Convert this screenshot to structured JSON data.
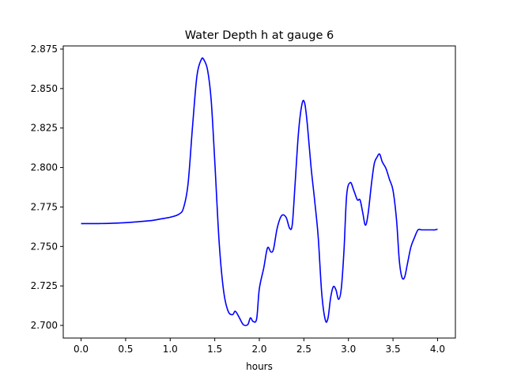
{
  "chart_data": {
    "type": "line",
    "title": "Water Depth h at gauge 6",
    "xlabel": "hours",
    "ylabel": "",
    "xlim": [
      -0.2,
      4.2
    ],
    "ylim": [
      2.692,
      2.877
    ],
    "xticks": [
      0.0,
      0.5,
      1.0,
      1.5,
      2.0,
      2.5,
      3.0,
      3.5,
      4.0
    ],
    "xtick_labels": [
      "0.0",
      "0.5",
      "1.0",
      "1.5",
      "2.0",
      "2.5",
      "3.0",
      "3.5",
      "4.0"
    ],
    "yticks": [
      2.7,
      2.725,
      2.75,
      2.775,
      2.8,
      2.825,
      2.85,
      2.875
    ],
    "ytick_labels": [
      "2.700",
      "2.725",
      "2.750",
      "2.775",
      "2.800",
      "2.825",
      "2.850",
      "2.875"
    ],
    "grid": false,
    "series": [
      {
        "color": "#0000ff",
        "x": [
          0.0,
          0.2,
          0.4,
          0.6,
          0.8,
          0.9,
          1.0,
          1.1,
          1.15,
          1.2,
          1.25,
          1.3,
          1.35,
          1.38,
          1.42,
          1.46,
          1.5,
          1.55,
          1.6,
          1.65,
          1.7,
          1.73,
          1.77,
          1.82,
          1.87,
          1.9,
          1.93,
          1.97,
          2.0,
          2.05,
          2.08,
          2.1,
          2.13,
          2.16,
          2.2,
          2.25,
          2.3,
          2.34,
          2.37,
          2.4,
          2.44,
          2.48,
          2.51,
          2.54,
          2.58,
          2.62,
          2.66,
          2.7,
          2.74,
          2.77,
          2.8,
          2.83,
          2.86,
          2.89,
          2.92,
          2.95,
          2.98,
          3.02,
          3.06,
          3.1,
          3.13,
          3.16,
          3.19,
          3.22,
          3.26,
          3.29,
          3.32,
          3.35,
          3.38,
          3.42,
          3.46,
          3.5,
          3.54,
          3.57,
          3.6,
          3.63,
          3.66,
          3.7,
          3.74,
          3.78,
          3.82,
          3.85,
          3.88,
          3.91,
          3.94,
          3.97,
          4.0
        ],
        "y": [
          2.7645,
          2.7645,
          2.7648,
          2.7655,
          2.7665,
          2.7675,
          2.7685,
          2.7705,
          2.7745,
          2.7895,
          2.8255,
          2.858,
          2.8685,
          2.868,
          2.8615,
          2.8425,
          2.804,
          2.752,
          2.7215,
          2.709,
          2.7068,
          2.709,
          2.7055,
          2.7005,
          2.7005,
          2.7048,
          2.7025,
          2.7042,
          2.7232,
          2.7365,
          2.7465,
          2.7495,
          2.7465,
          2.7485,
          2.7615,
          2.7695,
          2.7685,
          2.7615,
          2.764,
          2.7885,
          2.8225,
          2.8405,
          2.8405,
          2.8265,
          2.8005,
          2.7795,
          2.7565,
          2.7205,
          2.7035,
          2.7045,
          2.7175,
          2.7245,
          2.7225,
          2.7165,
          2.7235,
          2.7475,
          2.7825,
          2.7905,
          2.7855,
          2.7795,
          2.7795,
          2.7715,
          2.7635,
          2.7705,
          2.7905,
          2.8025,
          2.8065,
          2.8085,
          2.8035,
          2.7995,
          2.7925,
          2.7855,
          2.7665,
          2.7415,
          2.7305,
          2.7305,
          2.7385,
          2.7495,
          2.7555,
          2.7605,
          2.7605,
          2.7605,
          2.7605,
          2.7605,
          2.7605,
          2.7605,
          2.761
        ]
      }
    ]
  }
}
